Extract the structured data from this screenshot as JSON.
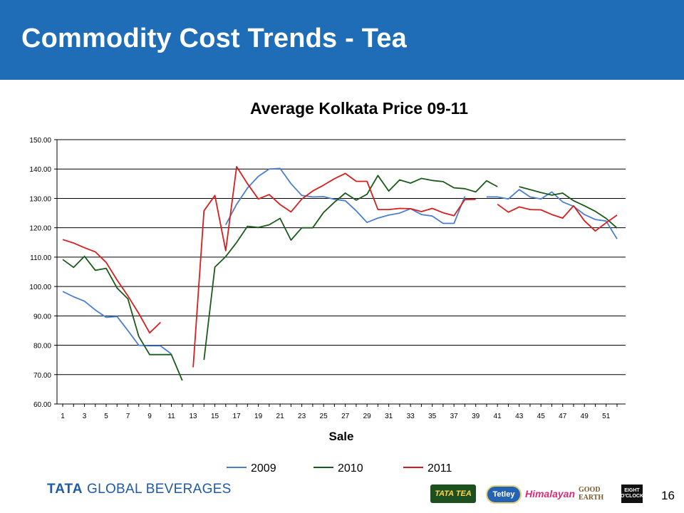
{
  "slide": {
    "title": "Commodity Cost Trends - Tea",
    "page_number": "16",
    "footer_logo": "TATA GLOBAL BEVERAGES",
    "brands": [
      "TATA TEA",
      "Tetley",
      "Himalayan",
      "GOOD EARTH",
      "EIGHT O'CLOCK"
    ]
  },
  "chart_data": {
    "type": "line",
    "title": "Average Kolkata Price 09-11",
    "xlabel": "Sale",
    "ylabel": "",
    "ylim": [
      60,
      150
    ],
    "yticks": [
      "60.00",
      "70.00",
      "80.00",
      "90.00",
      "100.00",
      "110.00",
      "120.00",
      "130.00",
      "140.00",
      "150.00"
    ],
    "xticks": [
      "1",
      "3",
      "5",
      "7",
      "9",
      "11",
      "13",
      "15",
      "17",
      "19",
      "21",
      "23",
      "25",
      "27",
      "29",
      "31",
      "33",
      "35",
      "37",
      "39",
      "41",
      "43",
      "45",
      "47",
      "49",
      "51"
    ],
    "x_range": [
      1,
      52
    ],
    "grid": "horizontal",
    "legend_position": "bottom",
    "series": [
      {
        "name": "2009",
        "color": "#4a7ed0",
        "segments": [
          [
            [
              1,
              98.3
            ],
            [
              2,
              96.5
            ],
            [
              3,
              95
            ],
            [
              4,
              92
            ],
            [
              5,
              89.5
            ],
            [
              6,
              89.8
            ],
            [
              7,
              85
            ],
            [
              8,
              80
            ],
            [
              9,
              79.8
            ],
            [
              10,
              79.8
            ],
            [
              11,
              77
            ]
          ],
          [
            [
              16,
              121
            ],
            [
              17,
              128
            ],
            [
              18,
              133.5
            ],
            [
              19,
              137.5
            ],
            [
              20,
              140
            ],
            [
              21,
              140.2
            ],
            [
              22,
              135
            ],
            [
              23,
              131
            ],
            [
              24,
              130.5
            ],
            [
              25,
              130.6
            ],
            [
              26,
              129.7
            ],
            [
              27,
              129.2
            ],
            [
              28,
              125.8
            ],
            [
              29,
              121.8
            ],
            [
              30,
              123.3
            ],
            [
              31,
              124.3
            ],
            [
              32,
              125
            ],
            [
              33,
              126.5
            ],
            [
              34,
              124.5
            ],
            [
              35,
              124
            ],
            [
              36,
              121.5
            ],
            [
              37,
              121.5
            ],
            [
              38,
              130.7
            ]
          ],
          [
            [
              40,
              130.5
            ],
            [
              41,
              130.5
            ],
            [
              42,
              129.8
            ],
            [
              43,
              133
            ],
            [
              44,
              130.5
            ],
            [
              45,
              129.8
            ],
            [
              46,
              132.2
            ],
            [
              47,
              128.8
            ],
            [
              48,
              127.3
            ],
            [
              49,
              124.5
            ],
            [
              50,
              122.8
            ],
            [
              51,
              122.3
            ],
            [
              52,
              116.2
            ]
          ]
        ]
      },
      {
        "name": "2010",
        "color": "#1a5a1a",
        "segments": [
          [
            [
              1,
              109.2
            ],
            [
              2,
              106.5
            ],
            [
              3,
              110.3
            ],
            [
              4,
              105.5
            ],
            [
              5,
              106.2
            ],
            [
              6,
              99.5
            ],
            [
              7,
              95.8
            ],
            [
              8,
              83
            ],
            [
              9,
              76.8
            ],
            [
              10,
              76.8
            ],
            [
              11,
              76.8
            ],
            [
              12,
              68
            ]
          ],
          [
            [
              14,
              75
            ],
            [
              15,
              106.6
            ],
            [
              16,
              110.2
            ],
            [
              17,
              115
            ],
            [
              18,
              120.5
            ],
            [
              19,
              120.1
            ],
            [
              20,
              121
            ],
            [
              21,
              123.2
            ],
            [
              22,
              115.8
            ],
            [
              23,
              120
            ],
            [
              24,
              120
            ],
            [
              25,
              125.2
            ],
            [
              26,
              128.7
            ],
            [
              27,
              131.8
            ],
            [
              28,
              129.4
            ],
            [
              29,
              131.4
            ],
            [
              30,
              137.8
            ],
            [
              31,
              132.5
            ],
            [
              32,
              136.3
            ],
            [
              33,
              135.2
            ],
            [
              34,
              136.8
            ],
            [
              35,
              136.1
            ],
            [
              36,
              135.7
            ],
            [
              37,
              133.6
            ],
            [
              38,
              133.3
            ],
            [
              39,
              132.2
            ],
            [
              40,
              136
            ],
            [
              41,
              134
            ]
          ],
          [
            [
              43,
              134
            ],
            [
              44,
              133
            ],
            [
              45,
              132
            ],
            [
              46,
              131.1
            ],
            [
              47,
              131.8
            ],
            [
              48,
              129.2
            ],
            [
              49,
              127.5
            ],
            [
              50,
              125.6
            ],
            [
              51,
              123.2
            ],
            [
              52,
              119.9
            ]
          ]
        ]
      },
      {
        "name": "2011",
        "color": "#d81e1e",
        "segments": [
          [
            [
              1,
              116
            ],
            [
              2,
              114.8
            ],
            [
              3,
              113.2
            ],
            [
              4,
              111.8
            ],
            [
              5,
              108.2
            ],
            [
              6,
              102.2
            ],
            [
              7,
              96.8
            ],
            [
              8,
              90.8
            ],
            [
              9,
              84.2
            ],
            [
              10,
              87.8
            ]
          ],
          [
            [
              13,
              72.5
            ],
            [
              14,
              125.8
            ],
            [
              15,
              131
            ],
            [
              16,
              112.2
            ],
            [
              17,
              140.8
            ],
            [
              18,
              135
            ],
            [
              19,
              129.8
            ],
            [
              20,
              131.3
            ],
            [
              21,
              127.9
            ],
            [
              22,
              125.4
            ],
            [
              23,
              129.8
            ],
            [
              24,
              132.5
            ],
            [
              25,
              134.5
            ],
            [
              26,
              136.7
            ],
            [
              27,
              138.5
            ],
            [
              28,
              135.8
            ],
            [
              29,
              135.8
            ],
            [
              30,
              126.2
            ],
            [
              31,
              126.2
            ],
            [
              32,
              126.6
            ],
            [
              33,
              126.5
            ],
            [
              34,
              125.5
            ],
            [
              35,
              126.6
            ],
            [
              36,
              125.1
            ],
            [
              37,
              124.1
            ],
            [
              38,
              129.6
            ],
            [
              39,
              129.7
            ]
          ],
          [
            [
              41,
              128
            ],
            [
              42,
              125.3
            ],
            [
              43,
              127.1
            ],
            [
              44,
              126.2
            ],
            [
              45,
              126.1
            ],
            [
              46,
              124.5
            ],
            [
              47,
              123.3
            ],
            [
              48,
              127.5
            ],
            [
              49,
              122.4
            ],
            [
              50,
              118.9
            ],
            [
              51,
              121.7
            ],
            [
              52,
              124.3
            ]
          ]
        ]
      }
    ]
  }
}
